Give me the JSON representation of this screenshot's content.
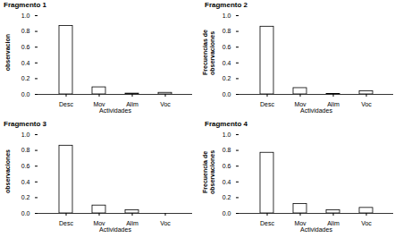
{
  "chart_data": [
    {
      "type": "bar",
      "title": "Fragmento 1",
      "x_label": "Actividades",
      "y_label": "observacion",
      "categories": [
        "Desc",
        "Mov",
        "Alim",
        "Voc"
      ],
      "values": [
        0.87,
        0.09,
        0.01,
        0.02
      ],
      "color": "#ffffff",
      "ylim": [
        0,
        1
      ],
      "yticks": [
        0,
        0.2,
        0.4,
        0.6,
        0.8,
        1
      ],
      "grid": false
    },
    {
      "type": "bar",
      "title": "Fragmento 2",
      "x_label": "Actividades",
      "y_label": "Frecuencias de observaciones",
      "categories": [
        "Desc",
        "Mov",
        "Alim",
        "Voc"
      ],
      "values": [
        0.86,
        0.08,
        0.005,
        0.04
      ],
      "color": "#ffffff",
      "ylim": [
        0,
        1
      ],
      "yticks": [
        0,
        0.2,
        0.4,
        0.6,
        0.8,
        1
      ],
      "grid": false
    },
    {
      "type": "bar",
      "title": "Fragmento 3",
      "x_label": "Actividades",
      "y_label": "observaciones",
      "categories": [
        "Desc",
        "Mov",
        "Alim",
        "Voc"
      ],
      "values": [
        0.86,
        0.1,
        0.04,
        0
      ],
      "color": "#ffffff",
      "ylim": [
        0,
        1
      ],
      "yticks": [
        0,
        0.2,
        0.4,
        0.6,
        0.8,
        1
      ],
      "grid": false
    },
    {
      "type": "bar",
      "title": "Fragmento 4",
      "x_label": "Actividades",
      "y_label": "Frecuencia de observaciones",
      "categories": [
        "Desc",
        "Mov",
        "Alim",
        "Voc"
      ],
      "values": [
        0.77,
        0.12,
        0.04,
        0.07
      ],
      "color": "#ffffff",
      "ylim": [
        0,
        1
      ],
      "yticks": [
        0,
        0.2,
        0.4,
        0.6,
        0.8,
        1
      ],
      "grid": false
    }
  ]
}
